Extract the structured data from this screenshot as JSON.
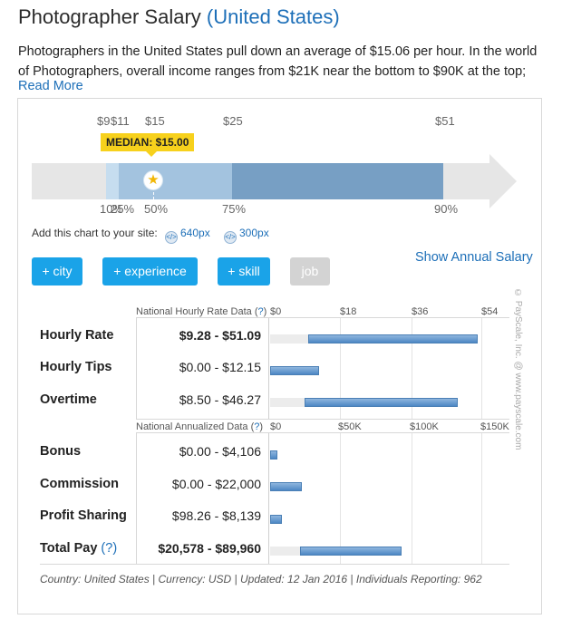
{
  "page": {
    "title": "Photographer Salary",
    "title_location": "(United States)",
    "intro_line1": "Photographers in the United States pull down an average of $15.06 per hour. In the world",
    "intro_line2": "of Photographers, overall income ranges from $21K near the bottom to $90K at the top;",
    "read_more": "Read More"
  },
  "percentile_chart": {
    "values": [
      {
        "label": "$9",
        "percentile": 10
      },
      {
        "label": "$11",
        "percentile": 25
      },
      {
        "label": "$15",
        "percentile": 50
      },
      {
        "label": "$25",
        "percentile": 75
      },
      {
        "label": "$51",
        "percentile": 90
      }
    ],
    "percentile_labels": [
      "10%",
      "25%",
      "50%",
      "75%",
      "90%"
    ],
    "median_badge": "MEDIAN: $15.00",
    "colors": {
      "outer": "#c6ddef",
      "inner_low": "#a3c3df",
      "inner_high": "#779fc4",
      "track": "#e6e6e6",
      "median": "#f7d11c"
    }
  },
  "embed": {
    "label": "Add this chart to your site:",
    "option_640": "640px",
    "option_300": "300px"
  },
  "filters": {
    "city": "+ city",
    "experience": "+ experience",
    "skill": "+ skill",
    "job": "job"
  },
  "show_annual": "Show Annual Salary",
  "hourly_section": {
    "header": "National Hourly Rate Data (",
    "header_q": "?",
    "header_end": ")",
    "ticks": [
      "$0",
      "$18",
      "$36",
      "$54"
    ],
    "axis_max": 54,
    "rows": [
      {
        "label": "Hourly Rate",
        "value": "$9.28 - $51.09",
        "bold": true,
        "low": 9.28,
        "high": 51.09
      },
      {
        "label": "Hourly Tips",
        "value": "$0.00 - $12.15",
        "bold": false,
        "low": 0,
        "high": 12.15
      },
      {
        "label": "Overtime",
        "value": "$8.50 - $46.27",
        "bold": false,
        "low": 8.5,
        "high": 46.27
      }
    ]
  },
  "annual_section": {
    "header": "National Annualized Data (",
    "header_q": "?",
    "header_end": ")",
    "ticks": [
      "$0",
      "$50K",
      "$100K",
      "$150K"
    ],
    "axis_max": 150000,
    "rows": [
      {
        "label": "Bonus",
        "value": "$0.00 - $4,106",
        "bold": false,
        "low": 0,
        "high": 4106
      },
      {
        "label": "Commission",
        "value": "$0.00 - $22,000",
        "bold": false,
        "low": 0,
        "high": 22000
      },
      {
        "label": "Profit Sharing",
        "value": "$98.26 - $8,139",
        "bold": false,
        "low": 98.26,
        "high": 8139
      },
      {
        "label": "Total Pay",
        "label_q": "(?)",
        "value": "$20,578 - $89,960",
        "bold": true,
        "low": 20578,
        "high": 89960
      }
    ]
  },
  "watermark": "© PayScale, Inc. @ www.payscale.com",
  "footer": "Country: United States  |  Currency: USD  |  Updated: 12 Jan 2016  |  Individuals Reporting: 962"
}
